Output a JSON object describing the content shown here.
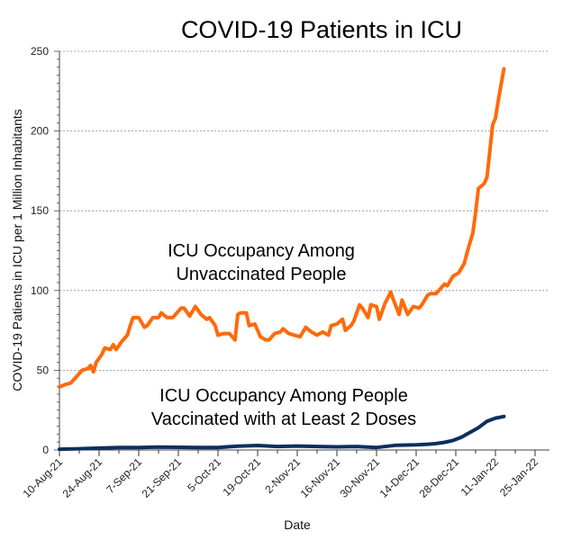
{
  "chart_data": {
    "type": "line",
    "title": "COVID-19 Patients in ICU",
    "xlabel": "Date",
    "ylabel": "COVID-19 Patients in ICU  per 1 Million Inhabitants",
    "ylim": [
      0,
      250
    ],
    "yticks": [
      0,
      50,
      100,
      150,
      200,
      250
    ],
    "grid": "horizontal dashed",
    "x_start": "2021-08-10",
    "x_end": "2022-01-29",
    "xtick_labels": [
      "10-Aug-21",
      "24-Aug-21",
      "7-Sep-21",
      "21-Sep-21",
      "5-Oct-21",
      "19-Oct-21",
      "2-Nov-21",
      "16-Nov-21",
      "30-Nov-21",
      "14-Dec-21",
      "28-Dec-21",
      "11-Jan-22",
      "25-Jan-22"
    ],
    "annotations": [
      {
        "lines": [
          "ICU Occupancy Among",
          "Unvaccinated People"
        ],
        "series": "Unvaccinated"
      },
      {
        "lines": [
          "ICU Occupancy Among People",
          "Vaccinated with at Least 2 Doses"
        ],
        "series": "Vaccinated"
      }
    ],
    "series": [
      {
        "name": "Unvaccinated",
        "color": "#ff6a0a",
        "day_offsets": [
          0,
          2,
          4,
          6,
          8,
          10,
          11,
          12,
          13,
          15,
          16,
          18,
          19,
          20,
          22,
          24,
          25,
          26,
          28,
          30,
          31,
          33,
          35,
          36,
          38,
          40,
          43,
          44,
          46,
          48,
          50,
          52,
          53,
          55,
          56,
          58,
          60,
          62,
          63,
          64,
          66,
          67,
          69,
          71,
          73,
          74,
          76,
          78,
          79,
          81,
          83,
          85,
          86,
          87,
          89,
          91,
          93,
          95,
          96,
          98,
          100,
          101,
          103,
          104,
          106,
          107,
          109,
          110,
          112,
          113,
          115,
          117,
          118,
          120,
          121,
          123,
          125,
          127,
          128,
          130,
          131,
          133,
          134,
          136,
          137,
          139,
          141,
          143,
          144,
          146,
          147,
          148,
          150,
          151,
          152,
          153,
          154,
          155,
          157
        ],
        "values": [
          39.5,
          41,
          42,
          46,
          50,
          51,
          53,
          49,
          55,
          60,
          64,
          63,
          66,
          63,
          68,
          72,
          78,
          83,
          83,
          77,
          78,
          83,
          83,
          86,
          83,
          83,
          89,
          89,
          84,
          90,
          85,
          82,
          83,
          78,
          72,
          73,
          73,
          69,
          85,
          86,
          86,
          78,
          79,
          71,
          69,
          69,
          73,
          74,
          76,
          73,
          72,
          71,
          74,
          77,
          74,
          72,
          74,
          72,
          78,
          79,
          82,
          75,
          78,
          81,
          91,
          89,
          83,
          91,
          90,
          82,
          92,
          99,
          94,
          85,
          94,
          85,
          90,
          89,
          91,
          97,
          98,
          98,
          100,
          104,
          103,
          109,
          111,
          117,
          124,
          136,
          149,
          164,
          167,
          171,
          187,
          204,
          208,
          219,
          239
        ]
      },
      {
        "name": "Vaccinated with at Least 2 Doses",
        "color": "#0c2f5e",
        "day_offsets": [
          0,
          7,
          14,
          21,
          28,
          35,
          42,
          49,
          56,
          63,
          70,
          77,
          84,
          91,
          98,
          105,
          112,
          119,
          126,
          130,
          133,
          136,
          139,
          142,
          145,
          148,
          151,
          154,
          157
        ],
        "values": [
          0.5,
          0.8,
          1.2,
          1.5,
          1.6,
          1.8,
          1.7,
          1.5,
          1.6,
          2.4,
          2.8,
          2.2,
          2.5,
          2.2,
          2.0,
          2.2,
          1.6,
          3.0,
          3.3,
          3.6,
          4.0,
          4.8,
          6.0,
          8.0,
          11,
          14,
          18,
          20,
          21
        ]
      }
    ]
  }
}
